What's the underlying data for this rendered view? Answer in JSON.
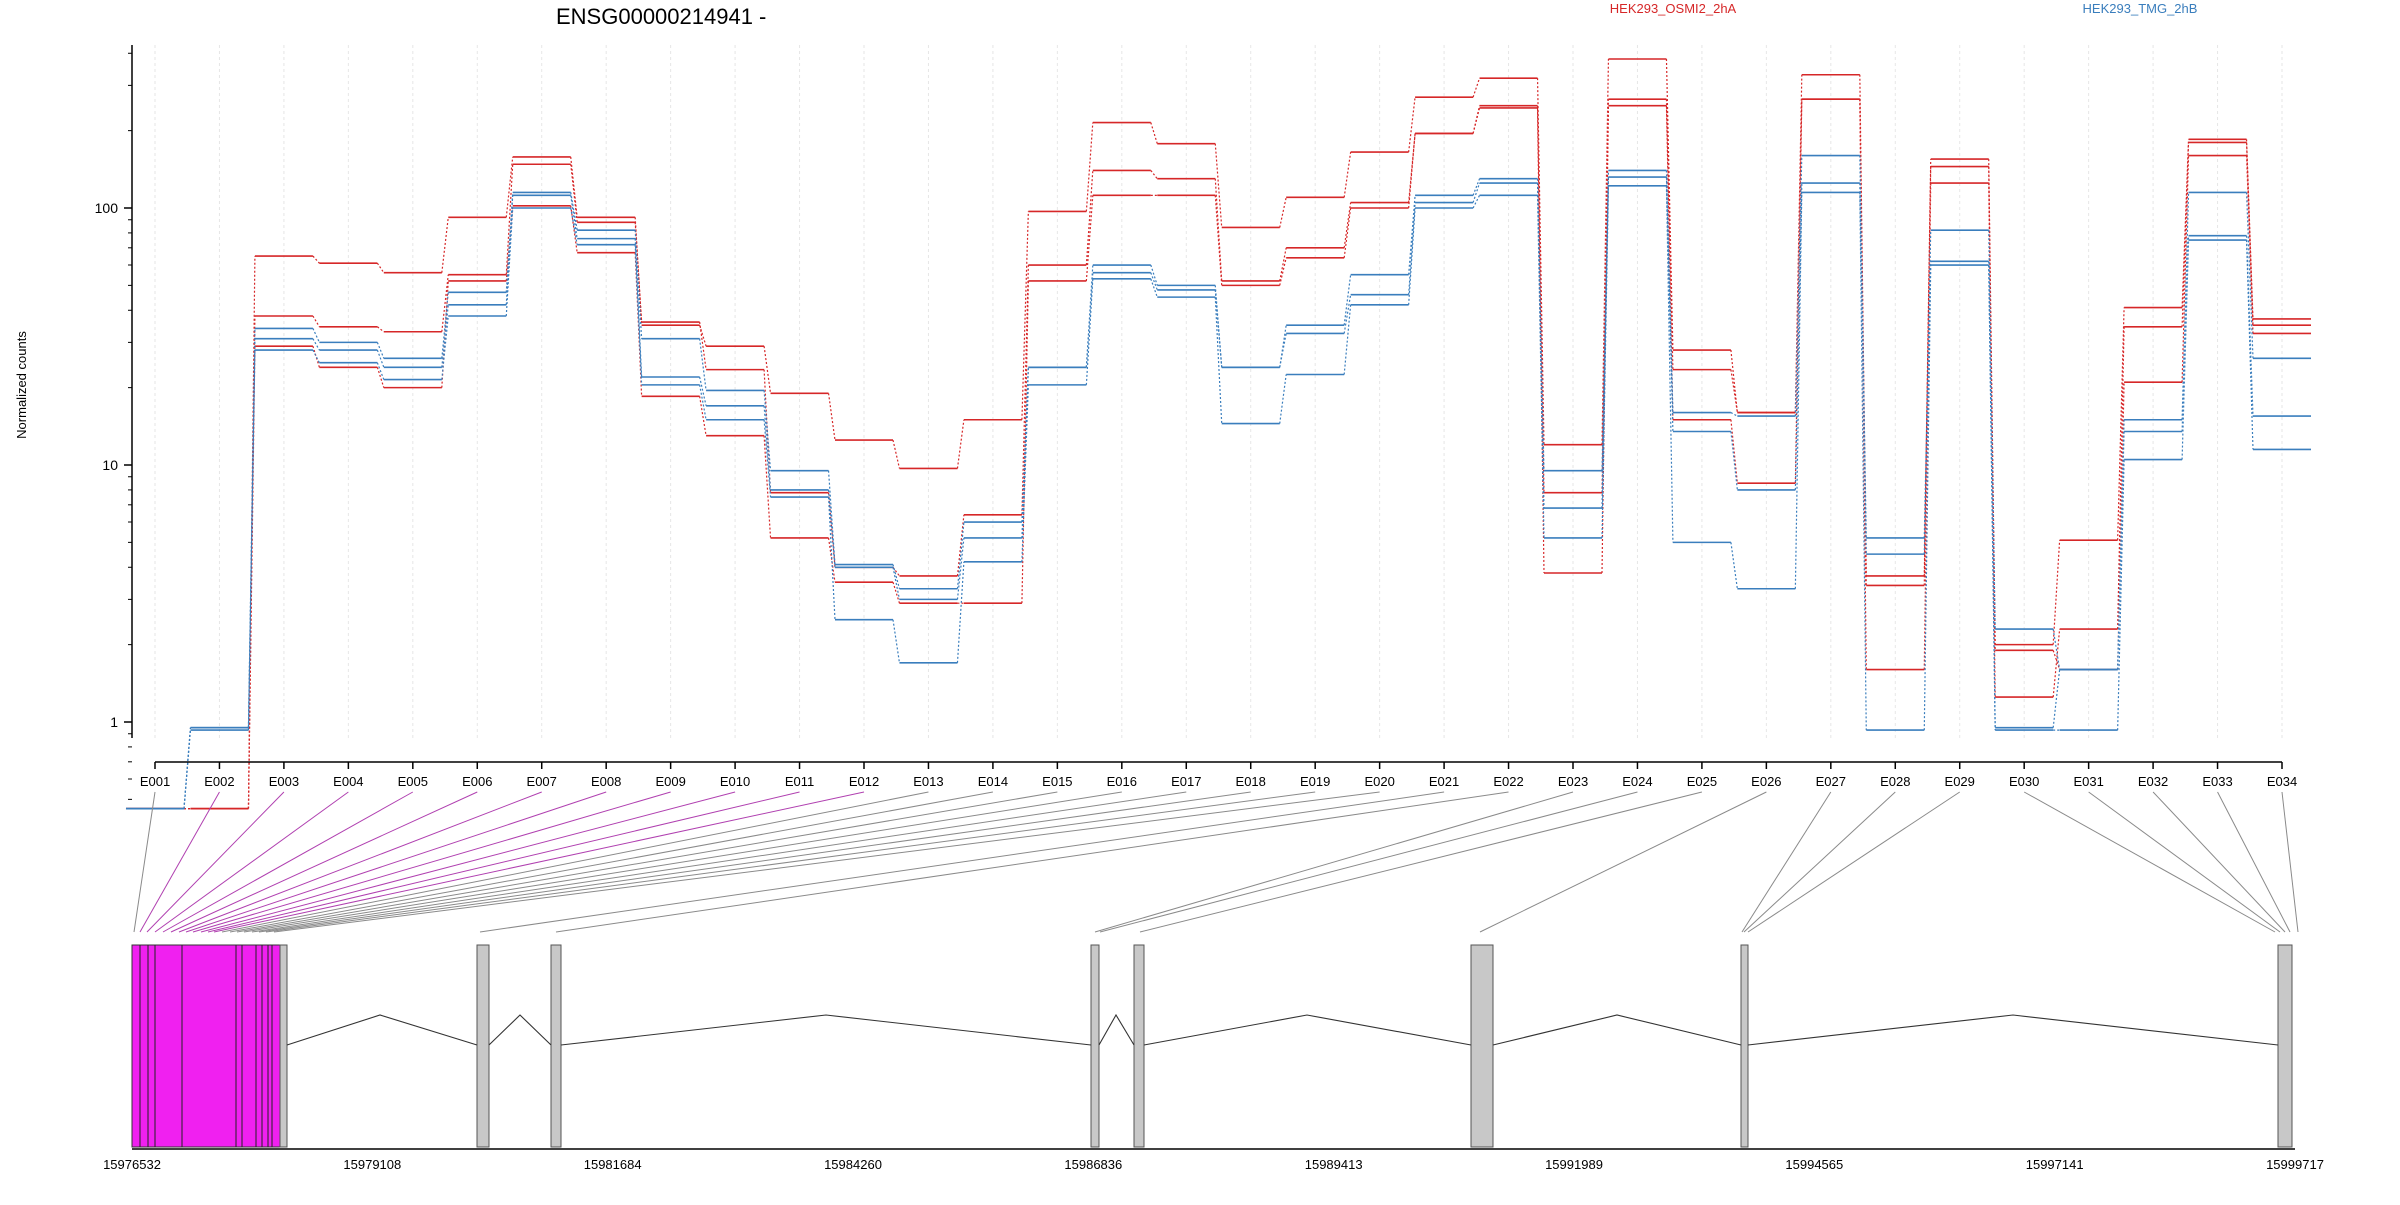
{
  "chart_data": {
    "type": "line",
    "title": "ENSG00000214941 -",
    "ylabel": "Normalized counts",
    "y_scale": "log",
    "ylim": [
      0.45,
      450
    ],
    "y_ticks": [
      1,
      10,
      100
    ],
    "y_tick_labels": [
      "1",
      "10",
      "100"
    ],
    "colors": {
      "HEK293_OSMI2_2hA": "#d62728",
      "HEK293_TMG_2hB": "#3a7ebd",
      "highlight_exon": "#f020f0",
      "exon": "#c8c8c8"
    },
    "categories": [
      "E001",
      "E002",
      "E003",
      "E004",
      "E005",
      "E006",
      "E007",
      "E008",
      "E009",
      "E010",
      "E011",
      "E012",
      "E013",
      "E014",
      "E015",
      "E016",
      "E017",
      "E018",
      "E019",
      "E020",
      "E021",
      "E022",
      "E023",
      "E024",
      "E025",
      "E026",
      "E027",
      "E028",
      "E029",
      "E030",
      "E031",
      "E032",
      "E033",
      "E034"
    ],
    "legend": [
      {
        "label": "HEK293_OSMI2_2hA",
        "color": "#d62728"
      },
      {
        "label": "HEK293_TMG_2hB",
        "color": "#3a7ebd"
      }
    ],
    "series": [
      {
        "group": "HEK293_OSMI2_2hA",
        "color": "#d62728",
        "values": [
          0.46,
          0.46,
          65,
          61,
          56,
          92,
          158,
          92,
          35,
          29,
          19,
          12.5,
          9.7,
          15,
          97,
          215,
          178,
          84,
          110,
          165,
          270,
          320,
          12,
          380,
          28,
          16,
          330,
          3.7,
          155,
          2,
          5.1,
          41,
          185,
          37
        ]
      },
      {
        "group": "HEK293_OSMI2_2hA",
        "color": "#d62728",
        "values": [
          0.46,
          0.46,
          38,
          34.5,
          33,
          55,
          148,
          88,
          36,
          23.5,
          7.8,
          4,
          3.7,
          6.4,
          60,
          140,
          130,
          52,
          70,
          105,
          195,
          250,
          7.8,
          265,
          23.5,
          16,
          265,
          3.4,
          145,
          1.25,
          2.3,
          34.5,
          180,
          35
        ]
      },
      {
        "group": "HEK293_OSMI2_2hA",
        "color": "#d62728",
        "values": [
          0.46,
          0.46,
          29,
          24,
          20,
          52,
          102,
          67,
          18.5,
          13,
          5.2,
          3.5,
          2.9,
          2.9,
          52,
          112,
          112,
          50,
          64,
          100,
          195,
          245,
          3.8,
          250,
          15,
          8.5,
          265,
          1.6,
          125,
          1.9,
          1.6,
          21,
          160,
          32.5
        ]
      },
      {
        "group": "HEK293_TMG_2hB",
        "color": "#3a7ebd",
        "values": [
          0.46,
          0.95,
          34,
          30,
          26,
          47,
          115,
          82,
          31,
          19.5,
          9.5,
          4.1,
          3.3,
          6,
          24,
          60,
          50,
          24,
          35,
          55,
          112,
          130,
          9.5,
          140,
          16,
          15.5,
          160,
          5.2,
          82,
          2.3,
          1.6,
          15,
          115,
          26
        ]
      },
      {
        "group": "HEK293_TMG_2hB",
        "color": "#3a7ebd",
        "values": [
          0.46,
          0.95,
          31,
          28,
          24,
          42,
          112,
          76,
          22,
          17,
          8,
          4,
          3,
          5.2,
          24,
          56,
          48,
          24,
          32.5,
          46,
          105,
          125,
          6.8,
          132,
          13.5,
          8,
          125,
          4.5,
          62,
          0.95,
          1.6,
          13.5,
          78,
          15.5
        ]
      },
      {
        "group": "HEK293_TMG_2hB",
        "color": "#3a7ebd",
        "values": [
          0.46,
          0.93,
          28,
          25,
          21.5,
          38,
          100,
          72,
          20.5,
          15,
          7.5,
          2.5,
          1.7,
          4.2,
          20.5,
          53,
          45,
          14.5,
          22.5,
          42,
          100,
          112,
          5.2,
          122,
          5,
          3.3,
          115,
          0.93,
          60,
          0.93,
          0.93,
          10.5,
          75,
          11.5
        ]
      }
    ],
    "exon_links_highlighted": 12
  },
  "genome_axis": {
    "tick_labels": [
      "15976532",
      "15979108",
      "15981684",
      "15984260",
      "15986836",
      "15989413",
      "15991989",
      "15994565",
      "15997141",
      "15999717"
    ]
  }
}
